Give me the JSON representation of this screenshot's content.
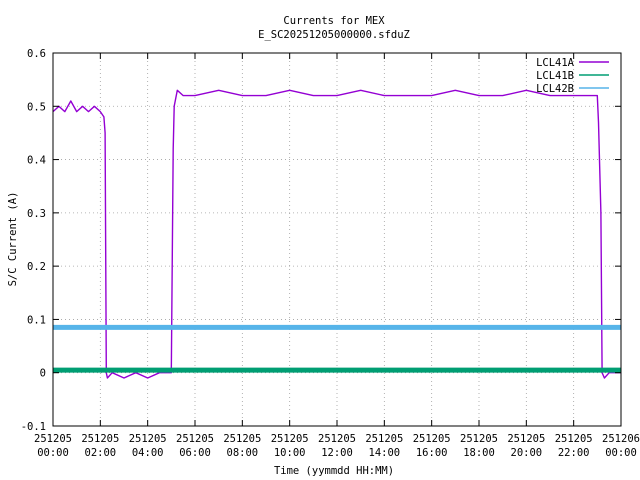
{
  "chart_data": {
    "type": "line",
    "title": "Currents for MEX",
    "subtitle": "E_SC20251205000000.sfduZ",
    "xlabel": "Time (yymmdd HH:MM)",
    "ylabel": "S/C Current (A)",
    "xlim": [
      0,
      24
    ],
    "ylim": [
      -0.1,
      0.6
    ],
    "grid": true,
    "legend_position": "top-right",
    "yticks": [
      "-0.1",
      "0",
      "0.1",
      "0.2",
      "0.3",
      "0.4",
      "0.5",
      "0.6"
    ],
    "xticks": [
      {
        "date": "251205",
        "time": "00:00"
      },
      {
        "date": "251205",
        "time": "02:00"
      },
      {
        "date": "251205",
        "time": "04:00"
      },
      {
        "date": "251205",
        "time": "06:00"
      },
      {
        "date": "251205",
        "time": "08:00"
      },
      {
        "date": "251205",
        "time": "10:00"
      },
      {
        "date": "251205",
        "time": "12:00"
      },
      {
        "date": "251205",
        "time": "14:00"
      },
      {
        "date": "251205",
        "time": "16:00"
      },
      {
        "date": "251205",
        "time": "18:00"
      },
      {
        "date": "251205",
        "time": "20:00"
      },
      {
        "date": "251205",
        "time": "22:00"
      },
      {
        "date": "251206",
        "time": "00:00"
      }
    ],
    "series": [
      {
        "name": "LCL41A",
        "color": "#9400d3",
        "x": [
          0.0,
          0.25,
          0.5,
          0.75,
          1.0,
          1.25,
          1.5,
          1.75,
          2.0,
          2.15,
          2.2,
          2.25,
          2.3,
          2.5,
          3.0,
          3.5,
          4.0,
          4.5,
          5.0,
          5.08,
          5.12,
          5.25,
          5.5,
          6.0,
          7.0,
          8.0,
          9.0,
          10.0,
          11.0,
          12.0,
          13.0,
          14.0,
          15.0,
          16.0,
          17.0,
          18.0,
          19.0,
          20.0,
          21.0,
          22.0,
          22.8,
          23.0,
          23.05,
          23.15,
          23.2,
          23.3,
          23.5,
          24.0
        ],
        "y": [
          0.49,
          0.5,
          0.49,
          0.51,
          0.49,
          0.5,
          0.49,
          0.5,
          0.49,
          0.48,
          0.45,
          0.0,
          -0.01,
          0.0,
          -0.01,
          0.0,
          -0.01,
          0.0,
          0.0,
          0.42,
          0.5,
          0.53,
          0.52,
          0.52,
          0.53,
          0.52,
          0.52,
          0.53,
          0.52,
          0.52,
          0.53,
          0.52,
          0.52,
          0.52,
          0.53,
          0.52,
          0.52,
          0.53,
          0.52,
          0.52,
          0.52,
          0.52,
          0.47,
          0.3,
          0.0,
          -0.01,
          0.0,
          0.0
        ]
      },
      {
        "name": "LCL41B",
        "color": "#009e73",
        "x": [
          0.0,
          2.0,
          4.0,
          6.0,
          8.0,
          10.0,
          12.0,
          14.0,
          16.0,
          18.0,
          20.0,
          22.0,
          24.0
        ],
        "y": [
          0.005,
          0.005,
          0.005,
          0.005,
          0.005,
          0.005,
          0.005,
          0.005,
          0.005,
          0.005,
          0.005,
          0.005,
          0.005
        ]
      },
      {
        "name": "LCL42B",
        "color": "#56b4e9",
        "x": [
          0.0,
          2.0,
          4.0,
          6.0,
          8.0,
          10.0,
          12.0,
          14.0,
          16.0,
          18.0,
          20.0,
          22.0,
          24.0
        ],
        "y": [
          0.085,
          0.085,
          0.085,
          0.085,
          0.085,
          0.085,
          0.085,
          0.085,
          0.085,
          0.085,
          0.085,
          0.085,
          0.085
        ]
      }
    ]
  }
}
